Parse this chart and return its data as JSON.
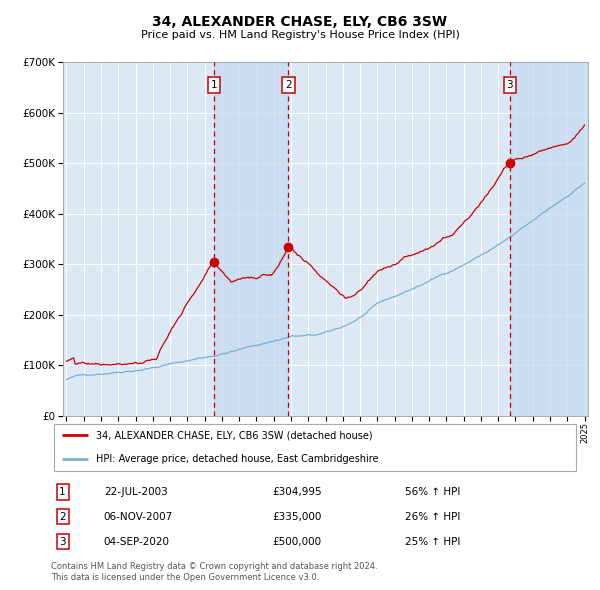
{
  "title": "34, ALEXANDER CHASE, ELY, CB6 3SW",
  "subtitle": "Price paid vs. HM Land Registry's House Price Index (HPI)",
  "background_color": "#ffffff",
  "plot_bg_color": "#dce9f5",
  "grid_color": "#ffffff",
  "x_start_year": 1995,
  "x_end_year": 2025,
  "y_min": 0,
  "y_max": 700000,
  "y_ticks": [
    0,
    100000,
    200000,
    300000,
    400000,
    500000,
    600000,
    700000
  ],
  "y_tick_labels": [
    "£0",
    "£100K",
    "£200K",
    "£300K",
    "£400K",
    "£500K",
    "£600K",
    "£700K"
  ],
  "sale_dates": [
    "22-JUL-2003",
    "06-NOV-2007",
    "04-SEP-2020"
  ],
  "sale_years": [
    2003.55,
    2007.85,
    2020.67
  ],
  "sale_prices": [
    304995,
    335000,
    500000
  ],
  "sale_labels": [
    "1",
    "2",
    "3"
  ],
  "sale_pct": [
    "56% ↑ HPI",
    "26% ↑ HPI",
    "25% ↑ HPI"
  ],
  "sale_price_labels": [
    "£304,995",
    "£335,000",
    "£500,000"
  ],
  "legend_property": "34, ALEXANDER CHASE, ELY, CB6 3SW (detached house)",
  "legend_hpi": "HPI: Average price, detached house, East Cambridgeshire",
  "footnote1": "Contains HM Land Registry data © Crown copyright and database right 2024.",
  "footnote2": "This data is licensed under the Open Government Licence v3.0.",
  "red_line_color": "#cc0000",
  "blue_line_color": "#7bafd4",
  "dashed_line_color": "#cc0000",
  "marker_color": "#cc0000",
  "shade_color": "#c5d8ee"
}
